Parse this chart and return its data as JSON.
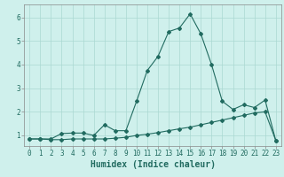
{
  "xlabel": "Humidex (Indice chaleur)",
  "x_ticks": [
    0,
    1,
    2,
    3,
    4,
    5,
    6,
    7,
    8,
    9,
    10,
    11,
    12,
    13,
    14,
    15,
    16,
    17,
    18,
    19,
    20,
    21,
    22,
    23
  ],
  "y_ticks": [
    1,
    2,
    3,
    4,
    5,
    6
  ],
  "xlim": [
    -0.5,
    23.5
  ],
  "ylim": [
    0.55,
    6.55
  ],
  "line1_x": [
    0,
    1,
    2,
    3,
    4,
    5,
    6,
    7,
    8,
    9,
    10,
    11,
    12,
    13,
    14,
    15,
    16,
    17,
    18,
    19,
    20,
    21,
    22,
    23
  ],
  "line1_y": [
    0.85,
    0.85,
    0.82,
    0.82,
    0.85,
    0.85,
    0.85,
    0.85,
    0.88,
    0.92,
    1.0,
    1.05,
    1.12,
    1.2,
    1.28,
    1.35,
    1.45,
    1.55,
    1.65,
    1.75,
    1.85,
    1.95,
    2.0,
    0.78
  ],
  "line2_x": [
    0,
    1,
    2,
    3,
    4,
    5,
    6,
    7,
    8,
    9,
    10,
    11,
    12,
    13,
    14,
    15,
    16,
    17,
    18,
    19,
    20,
    21,
    22,
    23
  ],
  "line2_y": [
    0.85,
    0.85,
    0.85,
    1.08,
    1.1,
    1.1,
    1.0,
    1.45,
    1.2,
    1.2,
    2.45,
    3.75,
    4.35,
    5.4,
    5.55,
    6.15,
    5.3,
    4.0,
    2.45,
    2.1,
    2.3,
    2.18,
    2.5,
    0.78
  ],
  "line_color": "#216b60",
  "bg_color": "#cff0ec",
  "grid_color": "#aad8d2",
  "tick_label_fontsize": 5.5,
  "xlabel_fontsize": 7.0,
  "marker_size": 2.0
}
